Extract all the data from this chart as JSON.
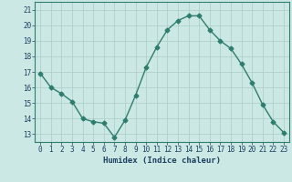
{
  "x": [
    0,
    1,
    2,
    3,
    4,
    5,
    6,
    7,
    8,
    9,
    10,
    11,
    12,
    13,
    14,
    15,
    16,
    17,
    18,
    19,
    20,
    21,
    22,
    23
  ],
  "y": [
    16.9,
    16.0,
    15.6,
    15.1,
    14.0,
    13.8,
    13.7,
    12.8,
    13.9,
    15.5,
    17.3,
    18.6,
    19.7,
    20.3,
    20.6,
    20.6,
    19.7,
    19.0,
    18.5,
    17.5,
    16.3,
    14.9,
    13.8,
    13.1
  ],
  "line_color": "#2e7d6e",
  "marker": "D",
  "marker_size": 2.5,
  "bg_color": "#cce8e4",
  "grid_color": "#aaccc8",
  "xlabel": "Humidex (Indice chaleur)",
  "xlim": [
    -0.5,
    23.5
  ],
  "ylim": [
    12.5,
    21.5
  ],
  "yticks": [
    13,
    14,
    15,
    16,
    17,
    18,
    19,
    20,
    21
  ],
  "xticks": [
    0,
    1,
    2,
    3,
    4,
    5,
    6,
    7,
    8,
    9,
    10,
    11,
    12,
    13,
    14,
    15,
    16,
    17,
    18,
    19,
    20,
    21,
    22,
    23
  ],
  "tick_label_fontsize": 5.5,
  "xlabel_fontsize": 6.5,
  "line_width": 1.0,
  "xlabel_color": "#1a4060",
  "tick_color": "#1a4060",
  "spine_color": "#2e7d6e"
}
